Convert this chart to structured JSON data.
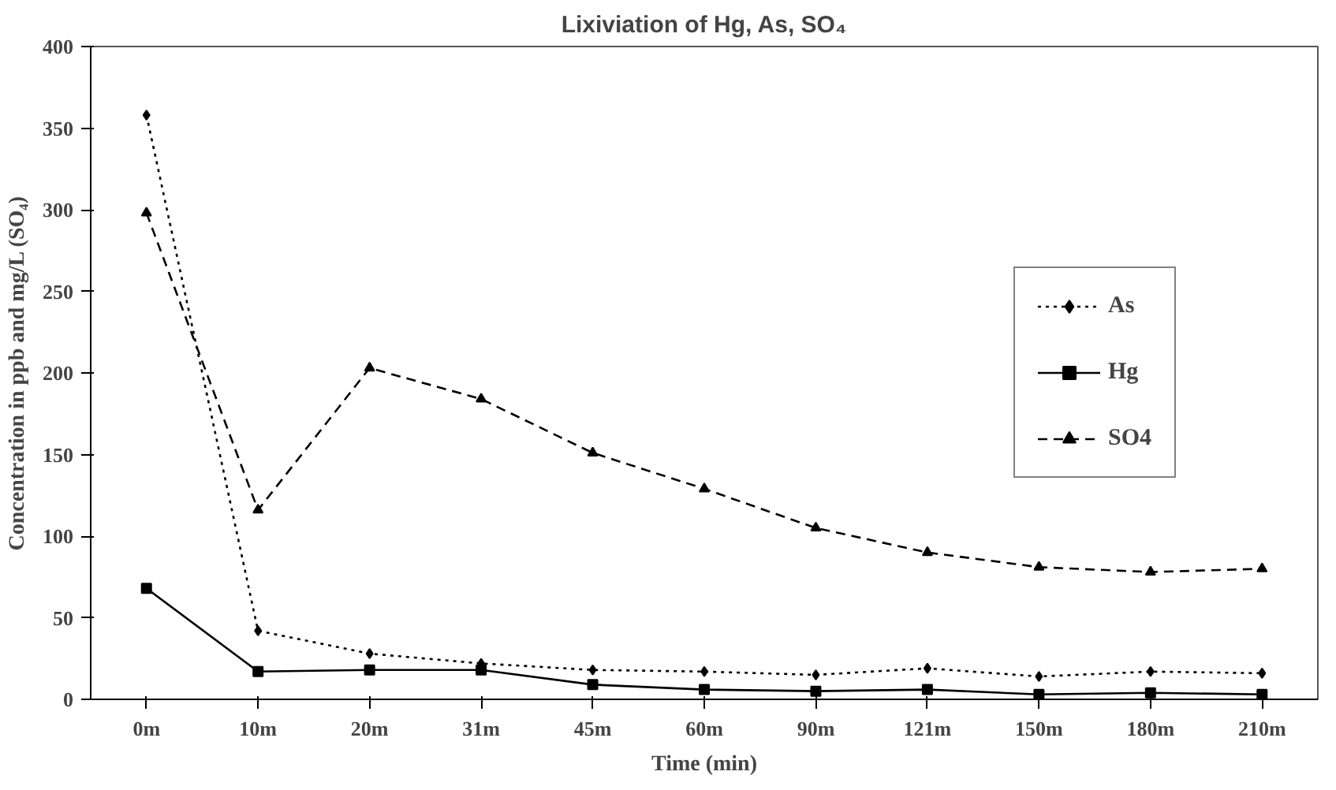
{
  "chart_data": {
    "type": "line",
    "title": "Lixiviation of Hg, As, SO₄",
    "xlabel": "Time (min)",
    "ylabel": "Concentration in ppb and mg/L (SO₄)",
    "categories": [
      "0m",
      "10m",
      "20m",
      "31m",
      "45m",
      "60m",
      "90m",
      "121m",
      "150m",
      "180m",
      "210m"
    ],
    "ylim": [
      0,
      400
    ],
    "yticks": [
      0,
      50,
      100,
      150,
      200,
      250,
      300,
      350,
      400
    ],
    "grid": false,
    "legend": "right",
    "series": [
      {
        "name": "As",
        "color": "#000000",
        "marker": "diamond",
        "line_style": "dotted",
        "values": [
          358,
          42,
          28,
          22,
          18,
          17,
          15,
          19,
          14,
          17,
          16
        ]
      },
      {
        "name": "Hg",
        "color": "#000000",
        "marker": "square",
        "line_style": "solid",
        "values": [
          68,
          17,
          18,
          18,
          9,
          6,
          5,
          6,
          3,
          4,
          3
        ]
      },
      {
        "name": "SO4",
        "color": "#000000",
        "marker": "triangle",
        "line_style": "dashed",
        "values": [
          298,
          116,
          203,
          184,
          151,
          129,
          105,
          90,
          81,
          78,
          80
        ]
      }
    ]
  }
}
